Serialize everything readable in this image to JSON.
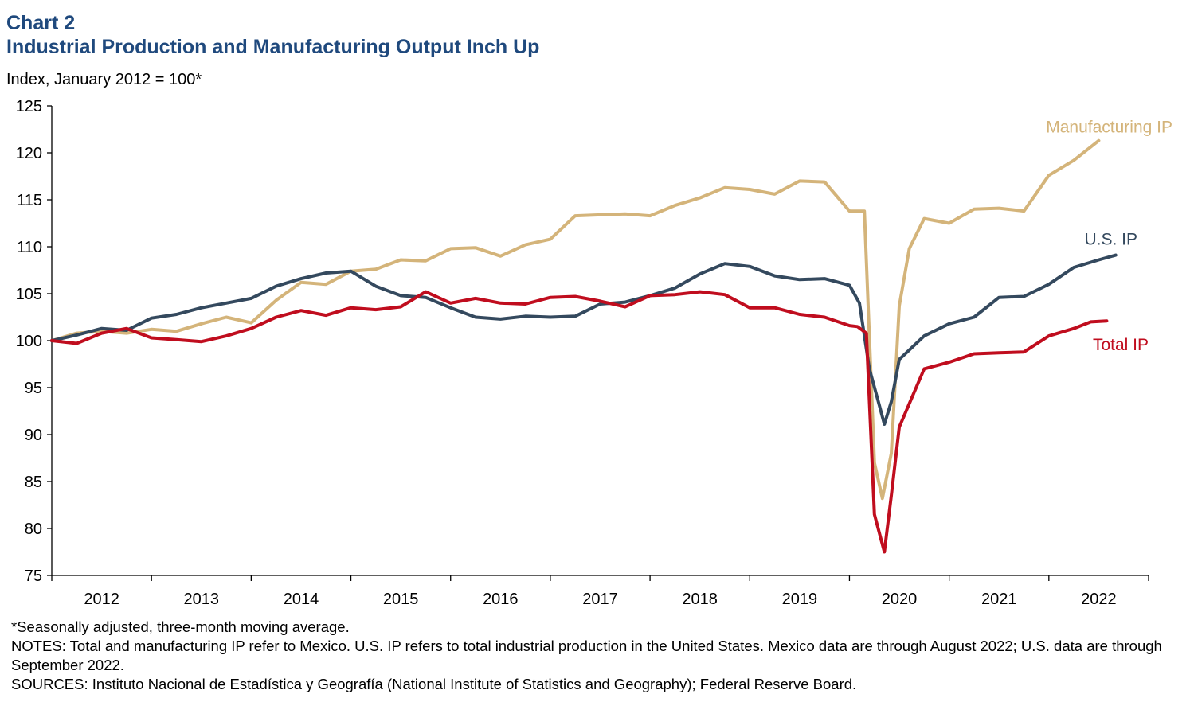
{
  "header": {
    "chart_label": "Chart 2",
    "title": "Industrial Production and Manufacturing Output Inch Up",
    "subtitle": "Index, January 2012 = 100*"
  },
  "footnotes": {
    "asterisk": "*Seasonally adjusted, three-month moving average.",
    "notes": "NOTES: Total and manufacturing IP refer to Mexico. U.S. IP refers to total industrial production in the United States. Mexico data are through August 2022; U.S. data are through September 2022.",
    "sources": "SOURCES: Instituto Nacional de Estadística y Geografía (National Institute of Statistics and Geography); Federal Reserve Board."
  },
  "colors": {
    "manufacturing": "#d4b47a",
    "us": "#34495e",
    "total": "#c00d1e",
    "axis": "#000000"
  },
  "chart_data": {
    "type": "line",
    "title": "Industrial Production and Manufacturing Output Inch Up",
    "ylabel": "Index, January 2012 = 100*",
    "xlabel": "",
    "ylim": [
      75,
      125
    ],
    "yticks": [
      75,
      80,
      85,
      90,
      95,
      100,
      105,
      110,
      115,
      120,
      125
    ],
    "x_start": 2012.0,
    "x_end": 2023.0,
    "x_categories": [
      "2012",
      "2013",
      "2014",
      "2015",
      "2016",
      "2017",
      "2018",
      "2019",
      "2020",
      "2021",
      "2022"
    ],
    "grid": false,
    "series": [
      {
        "name": "Manufacturing IP",
        "color": "#d4b47a",
        "label_pos": "top-right",
        "points": [
          [
            2012.0,
            100.0
          ],
          [
            2012.25,
            100.8
          ],
          [
            2012.5,
            101.0
          ],
          [
            2012.75,
            100.8
          ],
          [
            2013.0,
            101.2
          ],
          [
            2013.25,
            101.0
          ],
          [
            2013.5,
            101.8
          ],
          [
            2013.75,
            102.5
          ],
          [
            2014.0,
            101.9
          ],
          [
            2014.25,
            104.3
          ],
          [
            2014.5,
            106.2
          ],
          [
            2014.75,
            106.0
          ],
          [
            2015.0,
            107.4
          ],
          [
            2015.25,
            107.6
          ],
          [
            2015.5,
            108.6
          ],
          [
            2015.75,
            108.5
          ],
          [
            2016.0,
            109.8
          ],
          [
            2016.25,
            109.9
          ],
          [
            2016.5,
            109.0
          ],
          [
            2016.75,
            110.2
          ],
          [
            2017.0,
            110.8
          ],
          [
            2017.25,
            113.3
          ],
          [
            2017.5,
            113.4
          ],
          [
            2017.75,
            113.5
          ],
          [
            2018.0,
            113.3
          ],
          [
            2018.25,
            114.4
          ],
          [
            2018.5,
            115.2
          ],
          [
            2018.75,
            116.3
          ],
          [
            2019.0,
            116.1
          ],
          [
            2019.25,
            115.6
          ],
          [
            2019.5,
            117.0
          ],
          [
            2019.75,
            116.9
          ],
          [
            2020.0,
            113.8
          ],
          [
            2020.15,
            113.8
          ],
          [
            2020.25,
            87.0
          ],
          [
            2020.33,
            83.2
          ],
          [
            2020.42,
            88.0
          ],
          [
            2020.5,
            103.7
          ],
          [
            2020.6,
            109.8
          ],
          [
            2020.75,
            113.0
          ],
          [
            2021.0,
            112.5
          ],
          [
            2021.25,
            114.0
          ],
          [
            2021.5,
            114.1
          ],
          [
            2021.75,
            113.8
          ],
          [
            2022.0,
            117.6
          ],
          [
            2022.25,
            119.2
          ],
          [
            2022.5,
            121.3
          ]
        ]
      },
      {
        "name": "U.S. IP",
        "color": "#34495e",
        "label_pos": "right",
        "points": [
          [
            2012.0,
            100.0
          ],
          [
            2012.25,
            100.6
          ],
          [
            2012.5,
            101.3
          ],
          [
            2012.75,
            101.1
          ],
          [
            2013.0,
            102.4
          ],
          [
            2013.25,
            102.8
          ],
          [
            2013.5,
            103.5
          ],
          [
            2013.75,
            104.0
          ],
          [
            2014.0,
            104.5
          ],
          [
            2014.25,
            105.8
          ],
          [
            2014.5,
            106.6
          ],
          [
            2014.75,
            107.2
          ],
          [
            2015.0,
            107.4
          ],
          [
            2015.25,
            105.8
          ],
          [
            2015.5,
            104.8
          ],
          [
            2015.75,
            104.6
          ],
          [
            2016.0,
            103.5
          ],
          [
            2016.25,
            102.5
          ],
          [
            2016.5,
            102.3
          ],
          [
            2016.75,
            102.6
          ],
          [
            2017.0,
            102.5
          ],
          [
            2017.25,
            102.6
          ],
          [
            2017.5,
            103.9
          ],
          [
            2017.75,
            104.1
          ],
          [
            2018.0,
            104.8
          ],
          [
            2018.25,
            105.6
          ],
          [
            2018.5,
            107.1
          ],
          [
            2018.75,
            108.2
          ],
          [
            2019.0,
            107.9
          ],
          [
            2019.25,
            106.9
          ],
          [
            2019.5,
            106.5
          ],
          [
            2019.75,
            106.6
          ],
          [
            2020.0,
            105.9
          ],
          [
            2020.1,
            104.0
          ],
          [
            2020.2,
            97.0
          ],
          [
            2020.3,
            93.1
          ],
          [
            2020.35,
            91.1
          ],
          [
            2020.42,
            93.5
          ],
          [
            2020.5,
            98.0
          ],
          [
            2020.75,
            100.5
          ],
          [
            2021.0,
            101.8
          ],
          [
            2021.25,
            102.5
          ],
          [
            2021.5,
            104.6
          ],
          [
            2021.75,
            104.7
          ],
          [
            2022.0,
            106.0
          ],
          [
            2022.25,
            107.8
          ],
          [
            2022.5,
            108.6
          ],
          [
            2022.67,
            109.1
          ]
        ]
      },
      {
        "name": "Total IP",
        "color": "#c00d1e",
        "label_pos": "bottom-right",
        "points": [
          [
            2012.0,
            100.0
          ],
          [
            2012.25,
            99.7
          ],
          [
            2012.5,
            100.8
          ],
          [
            2012.75,
            101.3
          ],
          [
            2013.0,
            100.3
          ],
          [
            2013.25,
            100.1
          ],
          [
            2013.5,
            99.9
          ],
          [
            2013.75,
            100.5
          ],
          [
            2014.0,
            101.3
          ],
          [
            2014.25,
            102.5
          ],
          [
            2014.5,
            103.2
          ],
          [
            2014.75,
            102.7
          ],
          [
            2015.0,
            103.5
          ],
          [
            2015.25,
            103.3
          ],
          [
            2015.5,
            103.6
          ],
          [
            2015.75,
            105.2
          ],
          [
            2016.0,
            104.0
          ],
          [
            2016.25,
            104.5
          ],
          [
            2016.5,
            104.0
          ],
          [
            2016.75,
            103.9
          ],
          [
            2017.0,
            104.6
          ],
          [
            2017.25,
            104.7
          ],
          [
            2017.5,
            104.2
          ],
          [
            2017.75,
            103.6
          ],
          [
            2018.0,
            104.8
          ],
          [
            2018.25,
            104.9
          ],
          [
            2018.5,
            105.2
          ],
          [
            2018.75,
            104.9
          ],
          [
            2019.0,
            103.5
          ],
          [
            2019.25,
            103.5
          ],
          [
            2019.5,
            102.8
          ],
          [
            2019.75,
            102.5
          ],
          [
            2020.0,
            101.6
          ],
          [
            2020.08,
            101.5
          ],
          [
            2020.17,
            100.8
          ],
          [
            2020.25,
            81.5
          ],
          [
            2020.35,
            77.5
          ],
          [
            2020.42,
            83.5
          ],
          [
            2020.5,
            90.8
          ],
          [
            2020.75,
            97.0
          ],
          [
            2021.0,
            97.7
          ],
          [
            2021.25,
            98.6
          ],
          [
            2021.5,
            98.7
          ],
          [
            2021.75,
            98.8
          ],
          [
            2022.0,
            100.5
          ],
          [
            2022.25,
            101.3
          ],
          [
            2022.42,
            102.0
          ],
          [
            2022.58,
            102.1
          ]
        ]
      }
    ]
  }
}
